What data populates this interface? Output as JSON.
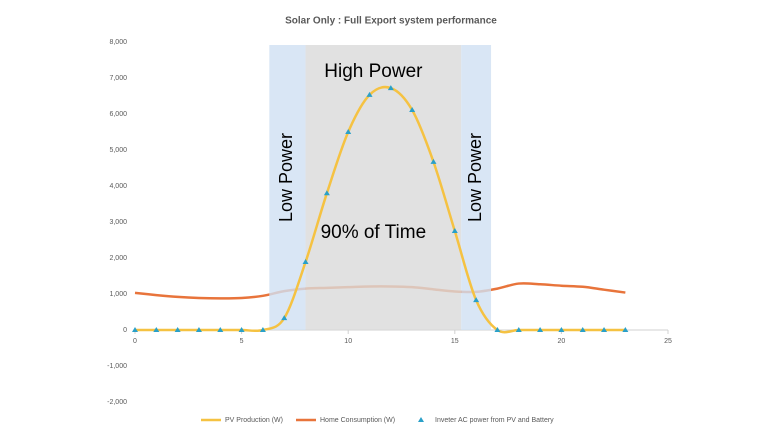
{
  "chart_data": {
    "type": "line",
    "title": "Solar Only :  Full Export system performance",
    "x": [
      0,
      1,
      2,
      3,
      4,
      5,
      6,
      7,
      8,
      9,
      10,
      11,
      12,
      13,
      14,
      15,
      16,
      17,
      18,
      19,
      20,
      21,
      22,
      23
    ],
    "series": [
      {
        "name": "PV Production (W)",
        "color": "#f5c242",
        "style": "line",
        "values": [
          0,
          0,
          0,
          0,
          0,
          0,
          0,
          330,
          1890,
          3800,
          5500,
          6530,
          6720,
          6110,
          4670,
          2750,
          830,
          0,
          0,
          0,
          0,
          0,
          0,
          0
        ]
      },
      {
        "name": "Home Consumption (W)",
        "color": "#e8743b",
        "style": "line",
        "values": [
          1030,
          970,
          920,
          890,
          880,
          890,
          950,
          1080,
          1150,
          1170,
          1190,
          1210,
          1210,
          1190,
          1130,
          1070,
          1060,
          1150,
          1290,
          1270,
          1230,
          1200,
          1120,
          1040
        ]
      },
      {
        "name": "Inveter AC power from PV and Battery",
        "color": "#2aa0c8",
        "style": "marker",
        "values": [
          0,
          0,
          0,
          0,
          0,
          0,
          0,
          330,
          1890,
          3800,
          5500,
          6530,
          6720,
          6110,
          4670,
          2750,
          830,
          0,
          0,
          0,
          0,
          0,
          0,
          0
        ]
      }
    ],
    "xlim": [
      0,
      25
    ],
    "xticks": [
      0,
      5,
      10,
      15,
      20,
      25
    ],
    "ylim": [
      -2000,
      8000
    ],
    "yticks": [
      {
        "value": -2000,
        "label": "-2,000"
      },
      {
        "value": -1000,
        "label": "-1,000"
      },
      0,
      {
        "value": 1000,
        "label": "1,000"
      },
      {
        "value": 2000,
        "label": "2,000"
      },
      {
        "value": 3000,
        "label": "3,000"
      },
      {
        "value": 4000,
        "label": "4,000"
      },
      {
        "value": 5000,
        "label": "5,000"
      },
      {
        "value": 6000,
        "label": "6,000"
      },
      {
        "value": 7000,
        "label": "7,000"
      },
      {
        "value": 8000,
        "label": "8,000"
      }
    ],
    "regions": [
      {
        "label": "Low Power",
        "x": [
          6.3,
          8
        ],
        "color": "#cfe0f3",
        "orient": "vertical"
      },
      {
        "label": "High Power",
        "note": "90% of Time",
        "x": [
          8,
          15.3
        ],
        "color": "#d9d9d9",
        "orient": "horizontal"
      },
      {
        "label": "Low Power",
        "x": [
          15.3,
          16.7
        ],
        "color": "#cfe0f3",
        "orient": "vertical"
      }
    ],
    "legend": "bottom"
  }
}
